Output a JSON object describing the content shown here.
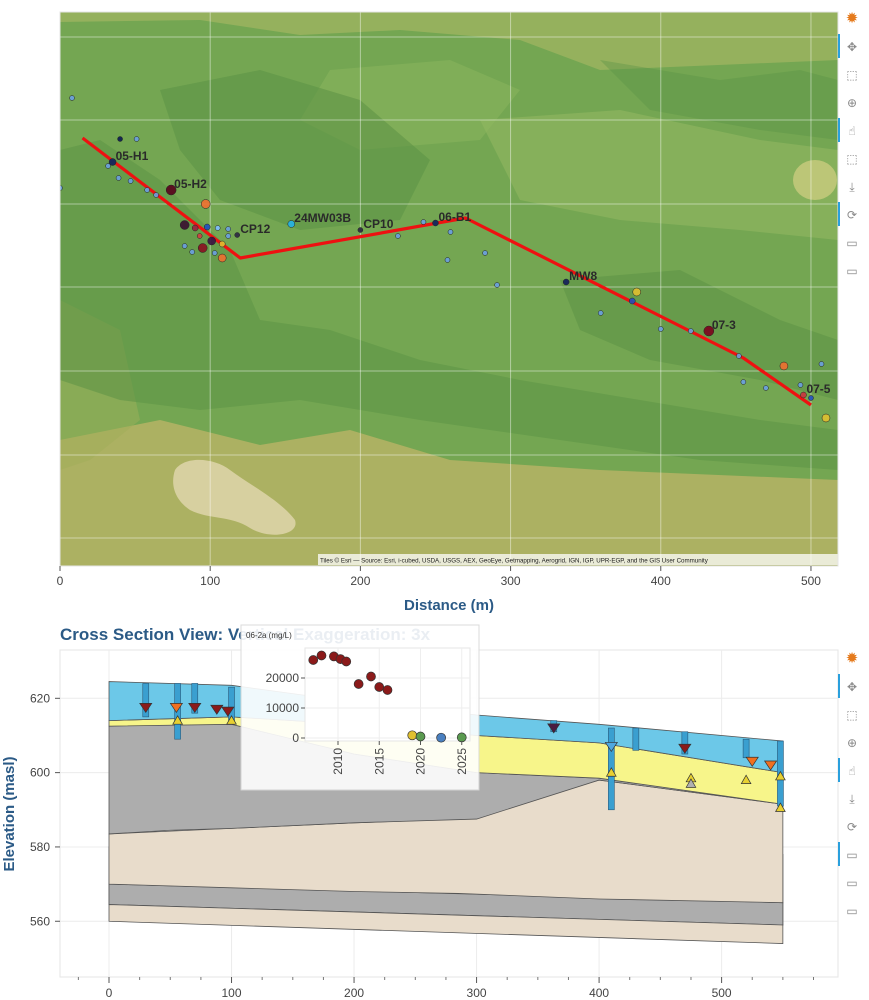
{
  "chart_data": [
    {
      "type": "scatter",
      "subtype": "map-plan-view",
      "title": "",
      "xlabel": "Distance (m)",
      "ylabel": "",
      "xlim": [
        0,
        518
      ],
      "x_ticks": [
        0,
        100,
        200,
        300,
        400,
        500
      ],
      "grid": true,
      "attribution": "Tiles © Esri — Source: Esri, i-cubed, USDA, USGS, AEX, GeoEye, Getmapping, Aerogrid, IGN, IGP, UPR-EGP, and the GIS User Community",
      "section_line": [
        [
          15,
          138
        ],
        [
          120,
          258
        ],
        [
          270,
          218
        ],
        [
          455,
          358
        ],
        [
          500,
          405
        ]
      ],
      "well_labels": [
        {
          "label": "05-H1",
          "x": 35,
          "y": 162,
          "size": 3.5,
          "color": "#1a2a5a"
        },
        {
          "label": "05-H2",
          "x": 74,
          "y": 190,
          "size": 5,
          "color": "#5a1020"
        },
        {
          "label": "CP12",
          "x": 118,
          "y": 235,
          "size": 2.5,
          "color": "#333344"
        },
        {
          "label": "24MW03B",
          "x": 154,
          "y": 224,
          "size": 3.5,
          "color": "#2ab0d8"
        },
        {
          "label": "CP10",
          "x": 200,
          "y": 230,
          "size": 2.5,
          "color": "#333344"
        },
        {
          "label": "06-B1",
          "x": 250,
          "y": 223,
          "size": 3,
          "color": "#1a2a5a"
        },
        {
          "label": "MW8",
          "x": 337,
          "y": 282,
          "size": 3,
          "color": "#1a2a5a"
        },
        {
          "label": "07-3",
          "x": 432,
          "y": 331,
          "size": 5,
          "color": "#7a1020"
        },
        {
          "label": "07-5",
          "x": 495,
          "y": 395,
          "size": 3,
          "color": "#c04040"
        }
      ],
      "points": [
        {
          "x": 8,
          "y": 98,
          "size": 2.5,
          "color": "#6aa0e0"
        },
        {
          "x": 0,
          "y": 188,
          "size": 2.5,
          "color": "#6aa0e0"
        },
        {
          "x": 40,
          "y": 139,
          "size": 2.5,
          "color": "#0a1a50"
        },
        {
          "x": 51,
          "y": 139,
          "size": 2.5,
          "color": "#6aa0e0"
        },
        {
          "x": 32,
          "y": 166,
          "size": 2.5,
          "color": "#6aa0e0"
        },
        {
          "x": 39,
          "y": 178,
          "size": 2.5,
          "color": "#6aa0e0"
        },
        {
          "x": 47,
          "y": 181,
          "size": 2.5,
          "color": "#6aa0e0"
        },
        {
          "x": 58,
          "y": 190,
          "size": 2.5,
          "color": "#6aa0e0"
        },
        {
          "x": 64,
          "y": 195,
          "size": 2.5,
          "color": "#6aa0e0"
        },
        {
          "x": 97,
          "y": 204,
          "size": 4.5,
          "color": "#f07030"
        },
        {
          "x": 83,
          "y": 225,
          "size": 4.5,
          "color": "#3a1030"
        },
        {
          "x": 90,
          "y": 228,
          "size": 3,
          "color": "#9a2040"
        },
        {
          "x": 98,
          "y": 227,
          "size": 3,
          "color": "#2050c0"
        },
        {
          "x": 105,
          "y": 228,
          "size": 2.5,
          "color": "#80c0ff"
        },
        {
          "x": 112,
          "y": 229,
          "size": 2.5,
          "color": "#6aa0e0"
        },
        {
          "x": 93,
          "y": 236,
          "size": 2.5,
          "color": "#d04040"
        },
        {
          "x": 101,
          "y": 241,
          "size": 4,
          "color": "#3a1040"
        },
        {
          "x": 108,
          "y": 244,
          "size": 3,
          "color": "#e0c030"
        },
        {
          "x": 95,
          "y": 248,
          "size": 4.5,
          "color": "#8a1020"
        },
        {
          "x": 88,
          "y": 252,
          "size": 2.5,
          "color": "#6aa0e0"
        },
        {
          "x": 103,
          "y": 253,
          "size": 2.5,
          "color": "#6aa0e0"
        },
        {
          "x": 108,
          "y": 258,
          "size": 4,
          "color": "#f07030"
        },
        {
          "x": 83,
          "y": 246,
          "size": 2.5,
          "color": "#6aa0e0"
        },
        {
          "x": 112,
          "y": 236,
          "size": 2.5,
          "color": "#6aa0e0"
        },
        {
          "x": 225,
          "y": 236,
          "size": 2.5,
          "color": "#6aa0e0"
        },
        {
          "x": 242,
          "y": 222,
          "size": 2.5,
          "color": "#6aa0e0"
        },
        {
          "x": 260,
          "y": 232,
          "size": 2.5,
          "color": "#6aa0e0"
        },
        {
          "x": 258,
          "y": 260,
          "size": 2.5,
          "color": "#6aa0e0"
        },
        {
          "x": 283,
          "y": 253,
          "size": 2.5,
          "color": "#6aa0e0"
        },
        {
          "x": 291,
          "y": 285,
          "size": 2.5,
          "color": "#6aa0e0"
        },
        {
          "x": 360,
          "y": 313,
          "size": 2.5,
          "color": "#6aa0e0"
        },
        {
          "x": 384,
          "y": 292,
          "size": 4,
          "color": "#e0c030"
        },
        {
          "x": 381,
          "y": 301,
          "size": 3,
          "color": "#2050c0"
        },
        {
          "x": 400,
          "y": 329,
          "size": 2.5,
          "color": "#6aa0e0"
        },
        {
          "x": 420,
          "y": 331,
          "size": 2.5,
          "color": "#6aa0e0"
        },
        {
          "x": 452,
          "y": 356,
          "size": 2.5,
          "color": "#6aa0e0"
        },
        {
          "x": 482,
          "y": 366,
          "size": 4,
          "color": "#f07030"
        },
        {
          "x": 507,
          "y": 364,
          "size": 2.5,
          "color": "#6aa0e0"
        },
        {
          "x": 493,
          "y": 385,
          "size": 2.5,
          "color": "#6aa0e0"
        },
        {
          "x": 500,
          "y": 398,
          "size": 2.5,
          "color": "#2050c0"
        },
        {
          "x": 510,
          "y": 418,
          "size": 4,
          "color": "#e0c030"
        },
        {
          "x": 455,
          "y": 382,
          "size": 2.5,
          "color": "#6aa0e0"
        },
        {
          "x": 470,
          "y": 388,
          "size": 2.5,
          "color": "#6aa0e0"
        }
      ]
    },
    {
      "type": "area",
      "subtype": "geologic-cross-section",
      "title": "Cross Section View: Vertical Exaggeration: 3x",
      "xlabel": "",
      "ylabel": "Elevation (masl)",
      "xlim": [
        -40,
        595
      ],
      "ylim": [
        545,
        633
      ],
      "x_ticks": [
        0,
        100,
        200,
        300,
        400,
        500
      ],
      "y_ticks": [
        560,
        580,
        600,
        620
      ],
      "grid": true,
      "layers": [
        {
          "name": "",
          "color": "#e8dccb",
          "x": [
            0,
            550
          ],
          "top": [
            580,
            578
          ],
          "bottom": [
            564.5,
            559
          ]
        },
        {
          "name": "",
          "color": "#adadad",
          "x": [
            0,
            550
          ],
          "top": [
            570,
            565
          ],
          "bottom": [
            564.5,
            559
          ]
        },
        {
          "name": "",
          "color": "#e8dccb",
          "x": [
            0,
            550
          ],
          "top": [
            564.5,
            559
          ],
          "bottom": [
            560,
            554
          ]
        },
        {
          "name": "",
          "color": "#e8dccb",
          "x": [
            0,
            100,
            200,
            285,
            400,
            550
          ],
          "top": [
            583.5,
            585,
            586.5,
            587.5,
            598,
            591.5
          ],
          "bottom": [
            570,
            569,
            568,
            567.5,
            566,
            565
          ]
        },
        {
          "name": "",
          "color": "#adadad",
          "x": [
            0,
            50,
            100,
            200,
            300,
            400,
            550
          ],
          "top": [
            612.5,
            614,
            614,
            605,
            600,
            598.5,
            591.5
          ],
          "bottom": [
            583.5,
            584.5,
            585,
            586.5,
            587.5,
            598,
            591.5
          ]
        },
        {
          "name": "",
          "color": "#f7f58a",
          "x": [
            0,
            100,
            200,
            300,
            400,
            550
          ],
          "top": [
            614,
            615,
            613,
            610,
            608,
            600
          ],
          "bottom": [
            612.5,
            613,
            605,
            600,
            598.5,
            591.5
          ]
        },
        {
          "name": "",
          "color": "#6cc8e8",
          "x": [
            0,
            100,
            200,
            300,
            400,
            550
          ],
          "top": [
            624.5,
            623.5,
            619,
            615.5,
            613,
            608.5
          ],
          "bottom": [
            614,
            615,
            613,
            610,
            608,
            600
          ]
        }
      ],
      "markers": [
        {
          "x": 30,
          "y": 617.5,
          "shape": "tri-down",
          "color": "#8b1a1a"
        },
        {
          "x": 55,
          "y": 617.5,
          "shape": "tri-down",
          "color": "#f07020"
        },
        {
          "x": 70,
          "y": 617.5,
          "shape": "tri-down",
          "color": "#8b1a1a"
        },
        {
          "x": 88,
          "y": 617,
          "shape": "tri-down",
          "color": "#8b1a1a"
        },
        {
          "x": 97,
          "y": 616.5,
          "shape": "tri-down",
          "color": "#8b1a1a"
        },
        {
          "x": 363,
          "y": 612,
          "shape": "tri-down",
          "color": "#4a1a40"
        },
        {
          "x": 410,
          "y": 607,
          "shape": "tri-down",
          "color": "#4fa8e0"
        },
        {
          "x": 470,
          "y": 606.5,
          "shape": "tri-down",
          "color": "#8b1a1a"
        },
        {
          "x": 525,
          "y": 603,
          "shape": "tri-down",
          "color": "#f07020"
        },
        {
          "x": 540,
          "y": 602,
          "shape": "tri-down",
          "color": "#f07020"
        },
        {
          "x": 56,
          "y": 614,
          "shape": "tri-up",
          "color": "#e8d030"
        },
        {
          "x": 100,
          "y": 614,
          "shape": "tri-up",
          "color": "#e8d030"
        },
        {
          "x": 410,
          "y": 600,
          "shape": "tri-up",
          "color": "#e8d030"
        },
        {
          "x": 475,
          "y": 598.5,
          "shape": "tri-up",
          "color": "#e8d030"
        },
        {
          "x": 520,
          "y": 598,
          "shape": "tri-up",
          "color": "#e8d030"
        },
        {
          "x": 548,
          "y": 599,
          "shape": "tri-up",
          "color": "#e8d030"
        },
        {
          "x": 475,
          "y": 597,
          "shape": "tri-up",
          "color": "#b0b0b0"
        },
        {
          "x": 548,
          "y": 590.5,
          "shape": "tri-up",
          "color": "#e8d030"
        }
      ],
      "wells": [
        {
          "x": 30,
          "top": 624,
          "bottom": 615
        },
        {
          "x": 56,
          "top": 624,
          "bottom": 609
        },
        {
          "x": 70,
          "top": 624,
          "bottom": 616
        },
        {
          "x": 100,
          "top": 623,
          "bottom": 614
        },
        {
          "x": 363,
          "top": 614,
          "bottom": 611
        },
        {
          "x": 410,
          "top": 612,
          "bottom": 590
        },
        {
          "x": 430,
          "top": 612,
          "bottom": 606
        },
        {
          "x": 470,
          "top": 611,
          "bottom": 605
        },
        {
          "x": 520,
          "top": 609,
          "bottom": 604
        },
        {
          "x": 548,
          "top": 608.5,
          "bottom": 591
        }
      ]
    },
    {
      "type": "scatter",
      "subtype": "hover-tooltip",
      "ylabel": "06-2a (mg/L)",
      "xlim": [
        2006,
        2026
      ],
      "ylim": [
        -1000,
        30000
      ],
      "x_ticks": [
        2010,
        2015,
        2020,
        2025
      ],
      "y_ticks": [
        0,
        10000,
        20000
      ],
      "points": [
        {
          "x": 2007,
          "y": 26000,
          "color": "#8b1a1a"
        },
        {
          "x": 2008,
          "y": 27500,
          "color": "#8b1a1a"
        },
        {
          "x": 2009.5,
          "y": 27200,
          "color": "#8b1a1a"
        },
        {
          "x": 2010.3,
          "y": 26300,
          "color": "#8b1a1a"
        },
        {
          "x": 2011,
          "y": 25500,
          "color": "#8b1a1a"
        },
        {
          "x": 2012.5,
          "y": 18000,
          "color": "#8b1a1a"
        },
        {
          "x": 2014,
          "y": 20500,
          "color": "#8b1a1a"
        },
        {
          "x": 2015,
          "y": 17000,
          "color": "#8b1a1a"
        },
        {
          "x": 2016,
          "y": 16000,
          "color": "#8b1a1a"
        },
        {
          "x": 2019,
          "y": 900,
          "color": "#e0c030"
        },
        {
          "x": 2020,
          "y": 500,
          "color": "#5a9a50"
        },
        {
          "x": 2022.5,
          "y": 100,
          "color": "#4a80c0"
        },
        {
          "x": 2025,
          "y": 200,
          "color": "#5a9a50"
        }
      ]
    }
  ],
  "toolbar": {
    "top": [
      "bokeh-logo-icon",
      "pan-icon",
      "box-zoom-icon",
      "wheel-zoom-icon",
      "tap-icon",
      "box-select-icon",
      "save-icon",
      "reset-icon",
      "hover-icon",
      "hover-icon"
    ],
    "bottom": [
      "bokeh-logo-icon",
      "pan-icon",
      "box-zoom-icon",
      "wheel-zoom-icon",
      "tap-icon",
      "save-icon",
      "reset-icon",
      "hover-icon",
      "hover-icon",
      "hover-icon"
    ]
  }
}
